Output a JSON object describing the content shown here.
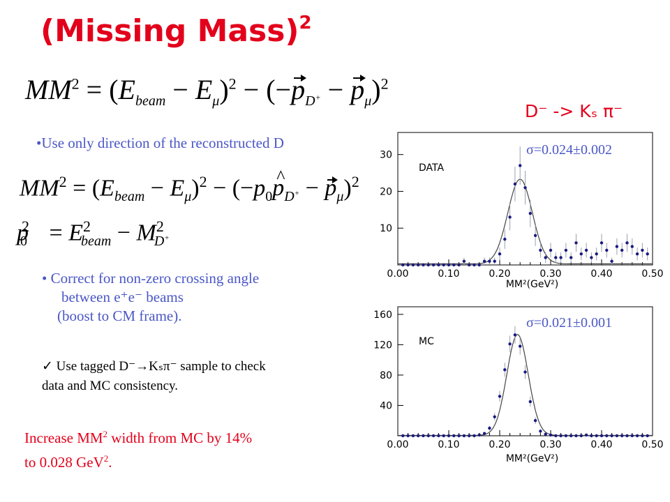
{
  "slide": {
    "title": "(Missing Mass)",
    "title_sup": "2",
    "equations": {
      "eq1": "MM² = (E_beam − E_μ)² − (−p⃗_D+ − p⃗_μ)²",
      "eq2": "MM² = (E_beam − E_μ)² − (−p₀ p̂_D+ − p⃗_μ)²",
      "eq3": "p₀² = E²_beam − M²_D+"
    },
    "bullet1": "•Use only direction of the reconstructed D",
    "bullet2": {
      "line1": "•  Correct for non-zero crossing angle",
      "line2": "between e⁺e⁻ beams",
      "line3": "(boost to CM frame)."
    },
    "check": {
      "line1": "✓ Use tagged D⁻→Kₛπ⁻ sample to check",
      "line2": "data and MC consistency."
    },
    "conclusion": {
      "line1_a": "Increase MM",
      "line1_sup": "2",
      "line1_b": " width from MC by 14%",
      "line2_a": "to 0.028 GeV",
      "line2_sup": "2",
      "line2_b": "."
    },
    "decay_label": "D⁻ -> Kₛ π⁻",
    "sigma_data": "σ=0.024±0.002",
    "sigma_mc": "σ=0.021±0.001",
    "colors": {
      "title": "#e3001b",
      "text": "#4b57c6",
      "highlight": "#e3001b",
      "points": "#1a1a80",
      "fit": "#444444"
    }
  },
  "chart_data": [
    {
      "type": "scatter",
      "label": "DATA",
      "xlabel": "MM²(GeV²)",
      "xlim": [
        0.0,
        0.5
      ],
      "ylim": [
        0,
        36
      ],
      "xticks": [
        "0.00",
        "0.10",
        "0.20",
        "0.30",
        "0.40",
        "0.50"
      ],
      "yticks": [
        "10",
        "20",
        "30"
      ],
      "ytick_values": [
        10,
        20,
        30
      ],
      "fit": {
        "mean": 0.24,
        "sigma": 0.024,
        "amplitude": 23,
        "baseline": 0.3
      },
      "series": [
        {
          "x": [
            0.01,
            0.02,
            0.03,
            0.04,
            0.05,
            0.06,
            0.07,
            0.08,
            0.09,
            0.1,
            0.11,
            0.12,
            0.13,
            0.14,
            0.15,
            0.16,
            0.17,
            0.18,
            0.19,
            0.2,
            0.21,
            0.22,
            0.23,
            0.24,
            0.25,
            0.26,
            0.27,
            0.28,
            0.29,
            0.3,
            0.31,
            0.32,
            0.33,
            0.34,
            0.35,
            0.36,
            0.37,
            0.38,
            0.39,
            0.4,
            0.41,
            0.42,
            0.43,
            0.44,
            0.45,
            0.46,
            0.47,
            0.48,
            0.49
          ],
          "y": [
            0,
            0,
            0,
            0,
            0,
            0,
            0,
            0,
            0,
            0,
            0,
            0,
            1,
            0,
            0,
            0,
            1,
            1,
            1,
            3,
            7,
            13,
            22,
            27,
            21,
            14,
            8,
            4,
            2,
            4,
            2,
            2,
            4,
            2,
            6,
            3,
            4,
            2,
            3,
            6,
            4,
            1,
            5,
            4,
            6,
            5,
            3,
            4,
            3
          ]
        }
      ]
    },
    {
      "type": "scatter",
      "label": "MC",
      "xlabel": "MM²(GeV²)",
      "xlim": [
        0.0,
        0.5
      ],
      "ylim": [
        0,
        170
      ],
      "xticks": [
        "0.00",
        "0.10",
        "0.20",
        "0.30",
        "0.40",
        "0.50"
      ],
      "yticks": [
        "40",
        "80",
        "120",
        "160"
      ],
      "ytick_values": [
        40,
        80,
        120,
        160
      ],
      "fit": {
        "mean": 0.235,
        "sigma": 0.021,
        "amplitude": 133,
        "baseline": 0.5
      },
      "series": [
        {
          "x": [
            0.01,
            0.02,
            0.03,
            0.04,
            0.05,
            0.06,
            0.07,
            0.08,
            0.09,
            0.1,
            0.11,
            0.12,
            0.13,
            0.14,
            0.15,
            0.16,
            0.17,
            0.18,
            0.19,
            0.2,
            0.21,
            0.22,
            0.23,
            0.24,
            0.25,
            0.26,
            0.27,
            0.28,
            0.29,
            0.3,
            0.31,
            0.32,
            0.33,
            0.34,
            0.35,
            0.36,
            0.37,
            0.38,
            0.39,
            0.4,
            0.41,
            0.42,
            0.43,
            0.44,
            0.45,
            0.46,
            0.47,
            0.48,
            0.49
          ],
          "y": [
            0,
            0,
            0,
            0,
            0,
            0,
            0,
            0,
            0,
            0,
            0,
            0,
            0,
            0,
            0,
            1,
            3,
            10,
            25,
            52,
            87,
            121,
            133,
            118,
            84,
            45,
            20,
            6,
            2,
            1,
            0,
            0,
            0,
            0,
            0,
            0,
            1,
            0,
            0,
            0,
            0,
            0,
            0,
            0,
            0,
            0,
            0,
            0,
            0
          ]
        }
      ]
    }
  ]
}
